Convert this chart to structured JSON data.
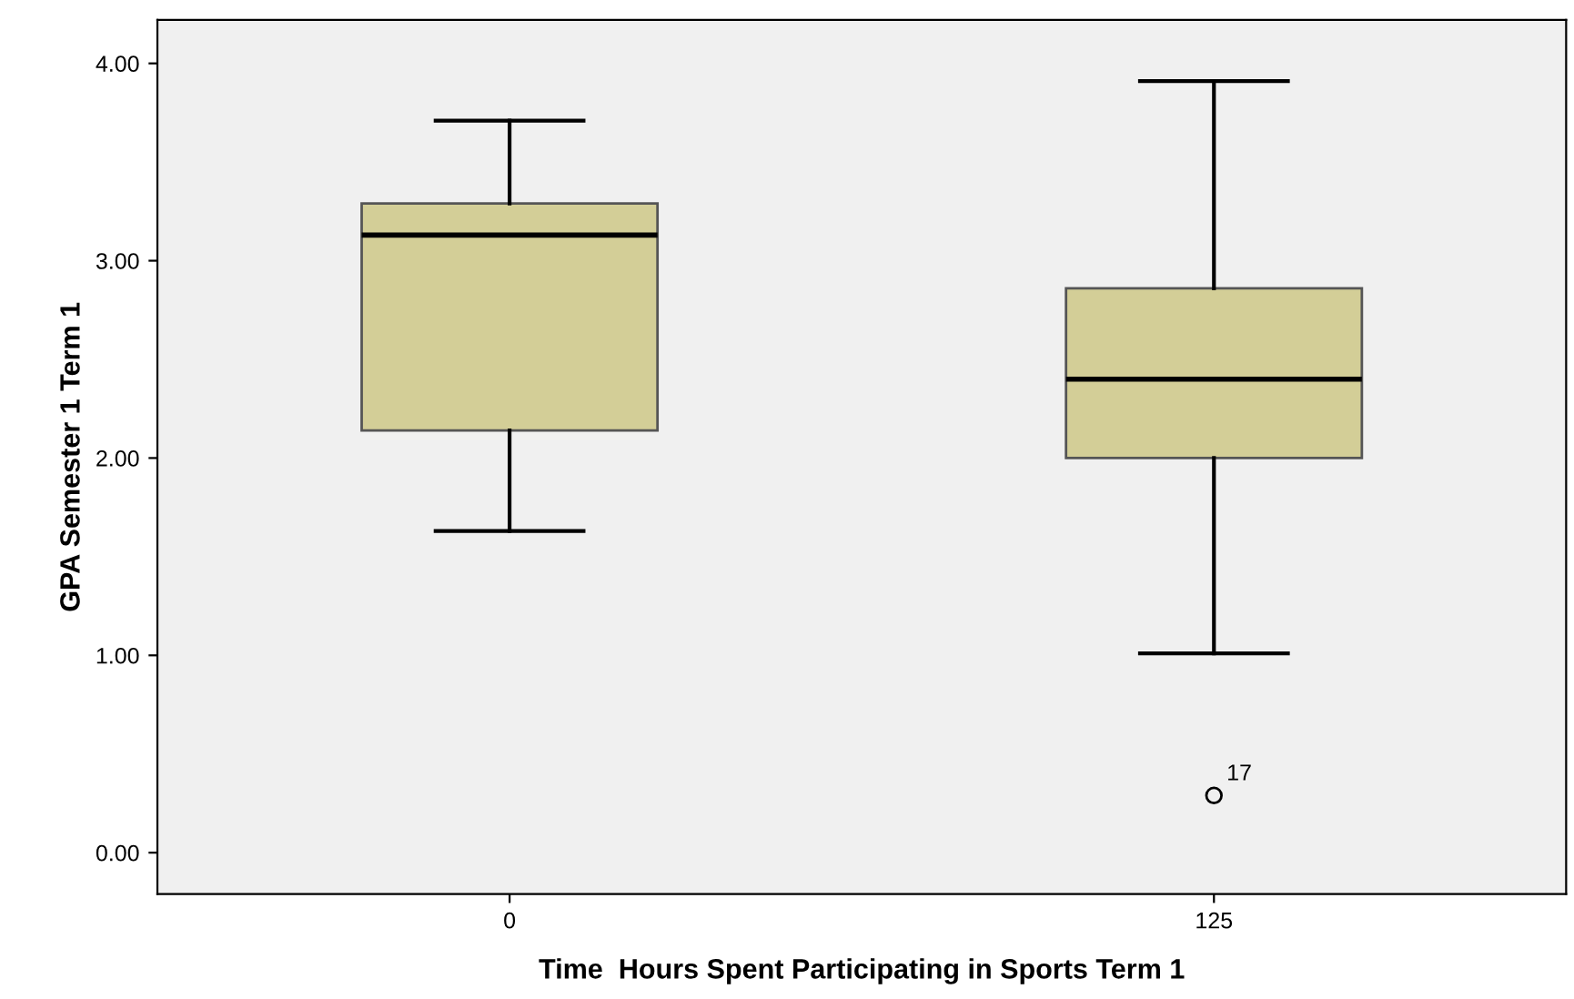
{
  "chart_data": {
    "type": "box",
    "xlabel": "Time  Hours Spent Participating in Sports Term 1",
    "ylabel": "GPA Semester 1 Term 1",
    "categories": [
      "0",
      "125"
    ],
    "boxes": [
      {
        "low": 1.63,
        "q1": 2.14,
        "median": 3.13,
        "q3": 3.29,
        "high": 3.71
      },
      {
        "low": 1.01,
        "q1": 2.0,
        "median": 2.4,
        "q3": 2.86,
        "high": 3.91,
        "outliers": [
          0.29
        ]
      }
    ],
    "color": "#d3ce97",
    "ylim": [
      -0.21,
      4.22
    ],
    "yticks": [
      {
        "value": 0,
        "label": "0.00"
      },
      {
        "value": 1,
        "label": "1.00"
      },
      {
        "value": 2,
        "label": "2.00"
      },
      {
        "value": 3,
        "label": "3.00"
      },
      {
        "value": 4,
        "label": "4.00"
      }
    ],
    "annotations": [
      "17"
    ],
    "grid": false
  }
}
